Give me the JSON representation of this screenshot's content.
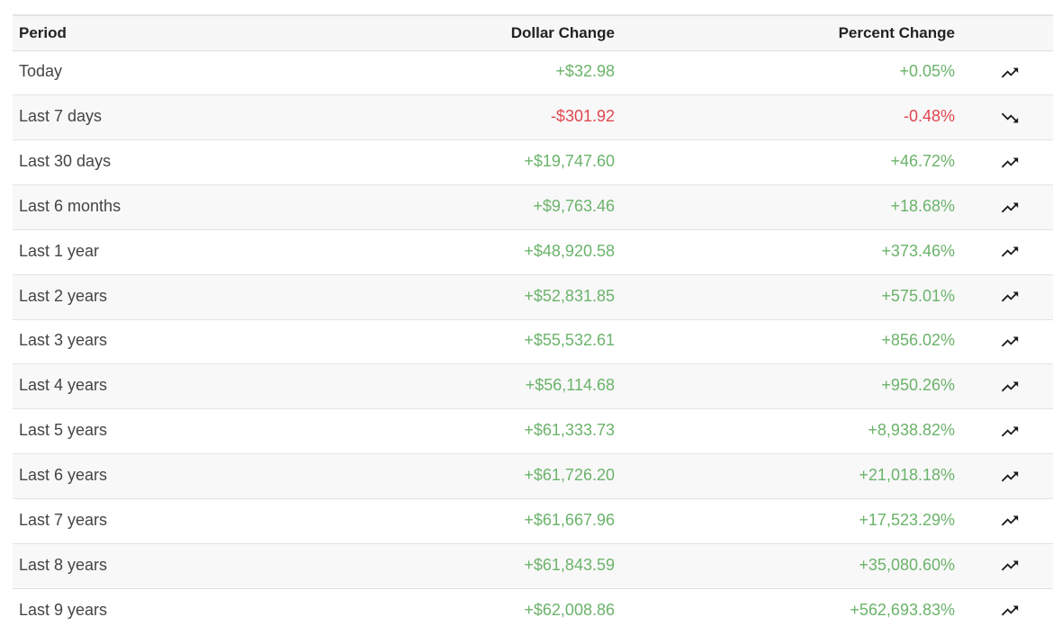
{
  "table": {
    "headers": {
      "period": "Period",
      "dollar": "Dollar Change",
      "percent": "Percent Change"
    },
    "rows": [
      {
        "period": "Today",
        "dollar": "+$32.98",
        "percent": "+0.05%",
        "direction": "up",
        "trend_icon": "trending-up-icon"
      },
      {
        "period": "Last 7 days",
        "dollar": "-$301.92",
        "percent": "-0.48%",
        "direction": "down",
        "trend_icon": "trending-down-icon"
      },
      {
        "period": "Last 30 days",
        "dollar": "+$19,747.60",
        "percent": "+46.72%",
        "direction": "up",
        "trend_icon": "trending-up-icon"
      },
      {
        "period": "Last 6 months",
        "dollar": "+$9,763.46",
        "percent": "+18.68%",
        "direction": "up",
        "trend_icon": "trending-up-icon"
      },
      {
        "period": "Last 1 year",
        "dollar": "+$48,920.58",
        "percent": "+373.46%",
        "direction": "up",
        "trend_icon": "trending-up-icon"
      },
      {
        "period": "Last 2 years",
        "dollar": "+$52,831.85",
        "percent": "+575.01%",
        "direction": "up",
        "trend_icon": "trending-up-icon"
      },
      {
        "period": "Last 3 years",
        "dollar": "+$55,532.61",
        "percent": "+856.02%",
        "direction": "up",
        "trend_icon": "trending-up-icon"
      },
      {
        "period": "Last 4 years",
        "dollar": "+$56,114.68",
        "percent": "+950.26%",
        "direction": "up",
        "trend_icon": "trending-up-icon"
      },
      {
        "period": "Last 5 years",
        "dollar": "+$61,333.73",
        "percent": "+8,938.82%",
        "direction": "up",
        "trend_icon": "trending-up-icon"
      },
      {
        "period": "Last 6 years",
        "dollar": "+$61,726.20",
        "percent": "+21,018.18%",
        "direction": "up",
        "trend_icon": "trending-up-icon"
      },
      {
        "period": "Last 7 years",
        "dollar": "+$61,667.96",
        "percent": "+17,523.29%",
        "direction": "up",
        "trend_icon": "trending-up-icon"
      },
      {
        "period": "Last 8 years",
        "dollar": "+$61,843.59",
        "percent": "+35,080.60%",
        "direction": "up",
        "trend_icon": "trending-up-icon"
      },
      {
        "period": "Last 9 years",
        "dollar": "+$62,008.86",
        "percent": "+562,693.83%",
        "direction": "up",
        "trend_icon": "trending-up-icon"
      }
    ]
  },
  "colors": {
    "positive": "#6bb36b",
    "negative": "#e0464f",
    "text": "#444444",
    "header_text": "#222222"
  }
}
